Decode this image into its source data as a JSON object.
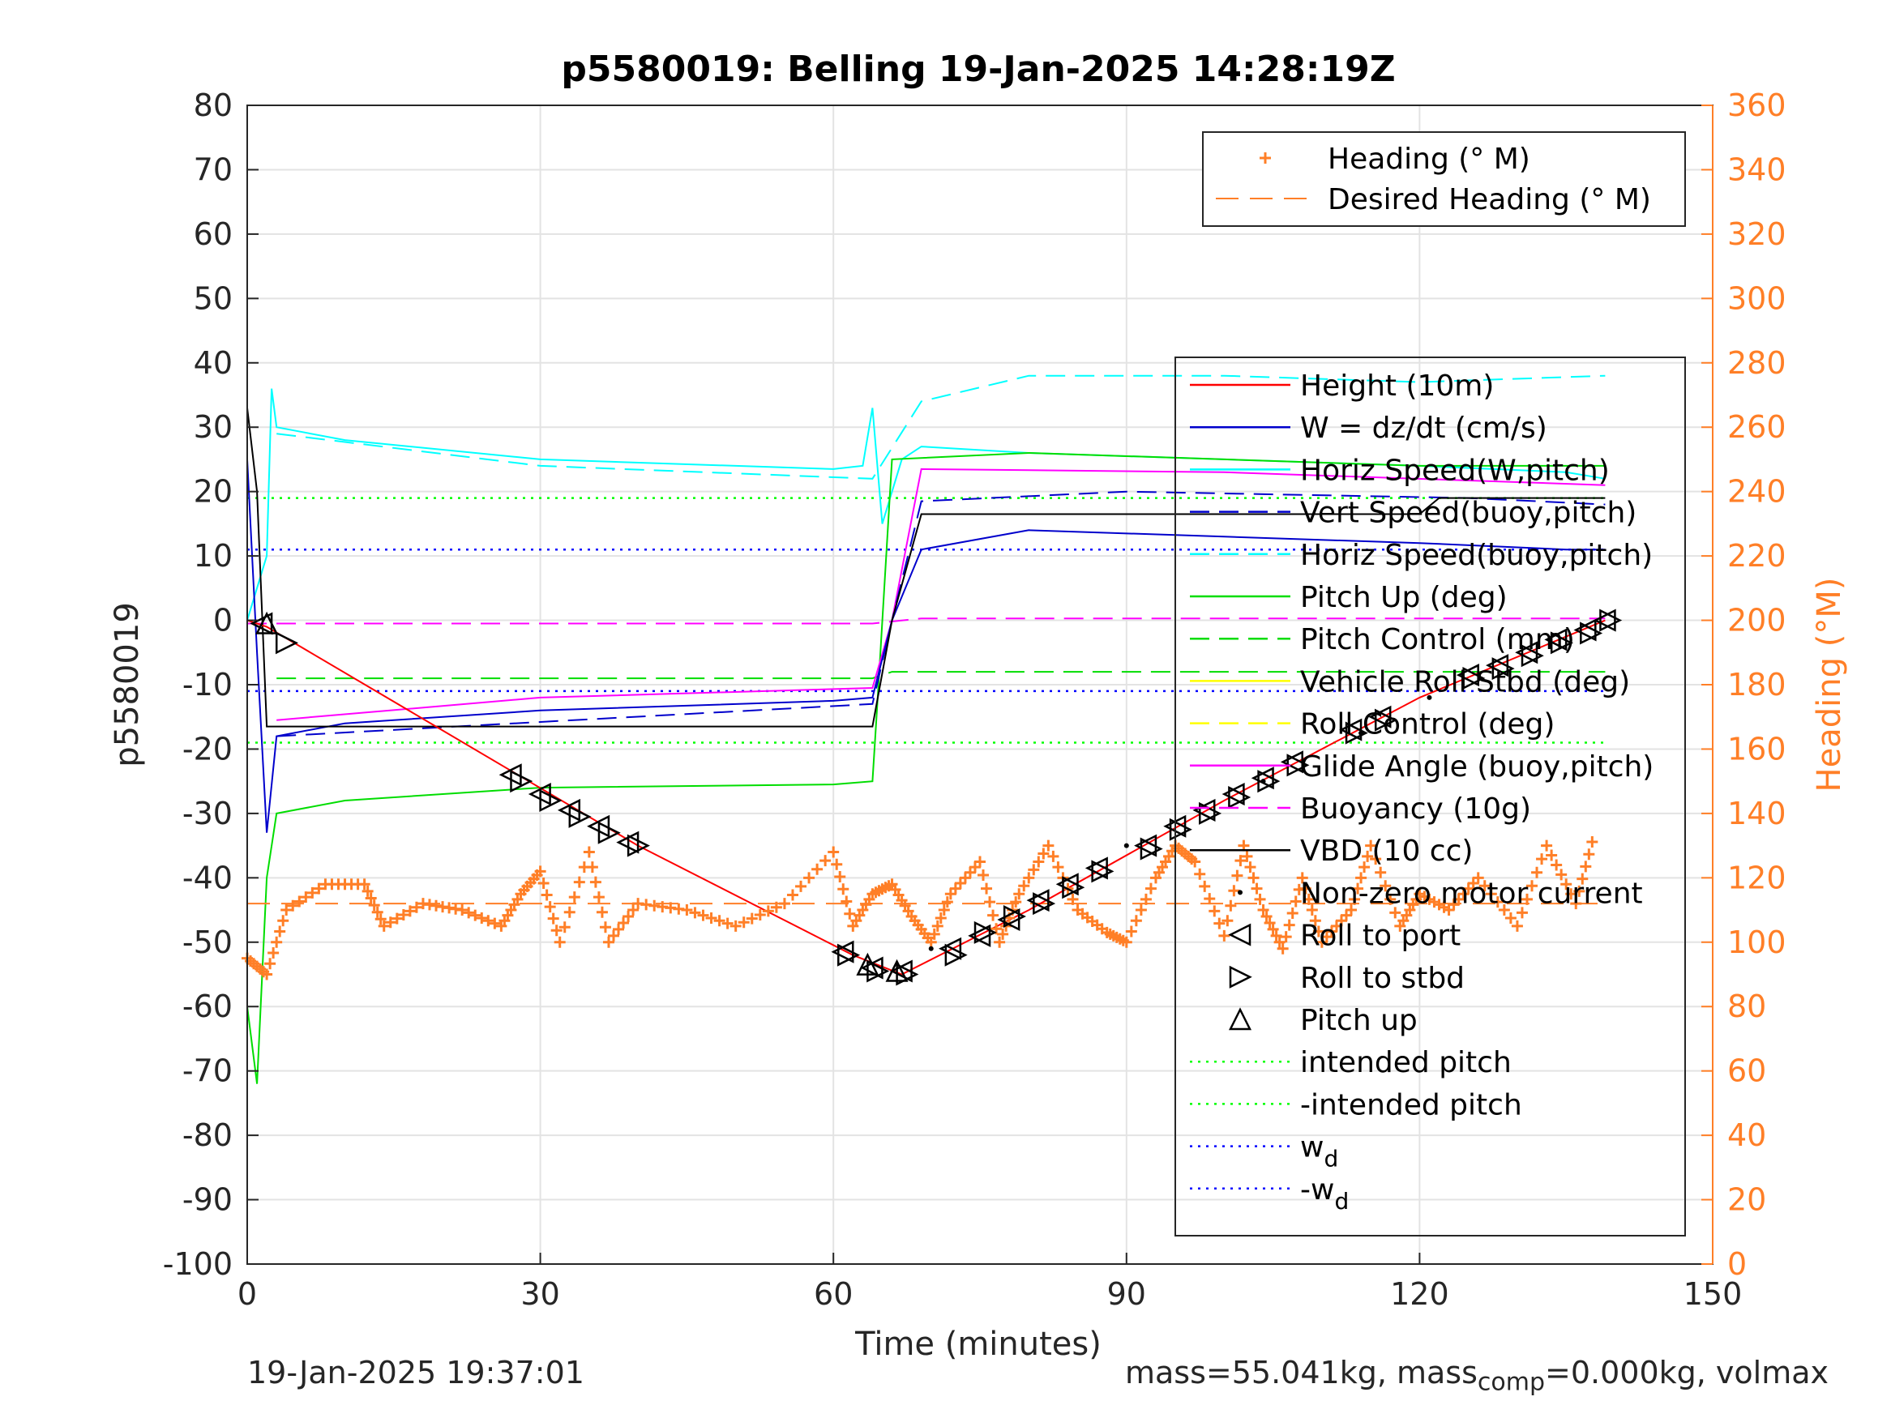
{
  "chart_data": {
    "type": "line",
    "title": "p5580019: Belling 19-Jan-2025 14:28:19Z",
    "xlabel": "Time (minutes)",
    "ylabel_left": "p5580019",
    "ylabel_right": "Heading (°M)",
    "xlim": [
      0,
      150
    ],
    "ylim_left": [
      -100,
      80
    ],
    "ylim_right": [
      0,
      360
    ],
    "xticks": [
      0,
      30,
      60,
      90,
      120,
      150
    ],
    "yticks_left": [
      80,
      70,
      60,
      50,
      40,
      30,
      20,
      10,
      0,
      -10,
      -20,
      -30,
      -40,
      -50,
      -60,
      -70,
      -80,
      -90,
      -100
    ],
    "yticks_right": [
      360,
      340,
      320,
      300,
      280,
      260,
      240,
      220,
      200,
      180,
      160,
      140,
      120,
      100,
      80,
      60,
      40,
      20,
      0
    ],
    "grid": true,
    "colors": {
      "heading": "#ff7f27",
      "height": "#ff0000",
      "w": "#0000cc",
      "horiz_speed": "#00ffff",
      "pitch": "#00dd00",
      "roll": "#ffff00",
      "glide": "#ff00ff",
      "vbd": "#000000"
    },
    "legend_heading": {
      "placement": "top-right",
      "entries": [
        "Heading (° M)",
        "Desired Heading (° M)"
      ]
    },
    "legend_main": {
      "placement": "right",
      "entries": [
        "Height (10m)",
        "W = dz/dt (cm/s)",
        "Horiz Speed(W,pitch)",
        "Vert Speed(buoy,pitch)",
        "Horiz Speed(buoy,pitch)",
        "Pitch Up (deg)",
        "Pitch Control (mm)",
        "Vehicle Roll Stbd (deg)",
        "Roll Control (deg)",
        "Glide Angle (buoy,pitch)",
        "Buoyancy (10g)",
        "VBD (10 cc)",
        "Non-zero motor current",
        "Roll to port",
        "Roll to stbd",
        "Pitch up",
        "intended pitch",
        "-intended pitch",
        "w",
        "-w"
      ],
      "subscript": "d"
    },
    "series": [
      {
        "name": "Height (10m)",
        "x": [
          0,
          2,
          40,
          62,
          67,
          80,
          100,
          120,
          139
        ],
        "y": [
          0,
          -1,
          -35,
          -52,
          -55,
          -45,
          -28,
          -12,
          0
        ]
      },
      {
        "name": "W = dz/dt (cm/s)",
        "x": [
          0,
          1,
          2,
          3,
          10,
          30,
          60,
          64,
          66,
          69,
          80,
          100,
          120,
          135,
          139
        ],
        "y": [
          25,
          -5,
          -33,
          -18,
          -16,
          -14,
          -12.5,
          -12,
          0,
          11,
          14,
          13,
          12,
          11,
          11
        ]
      },
      {
        "name": "Horiz Speed(W,pitch)",
        "x": [
          0,
          2,
          2.5,
          3,
          10,
          30,
          60,
          63,
          64,
          65,
          67,
          69,
          80,
          100,
          120,
          135,
          139
        ],
        "y": [
          0,
          10,
          36,
          30,
          28,
          25,
          23.5,
          24,
          33,
          15,
          25,
          27,
          26,
          25,
          24,
          23,
          22
        ]
      },
      {
        "name": "Vert Speed(buoy,pitch)",
        "x": [
          3,
          64,
          66,
          69,
          90,
          125,
          139
        ],
        "y": [
          -18,
          -13,
          0,
          18.5,
          20,
          19,
          18
        ]
      },
      {
        "name": "Horiz Speed(buoy,pitch)",
        "x": [
          3,
          30,
          64,
          69,
          80,
          100,
          120,
          139
        ],
        "y": [
          29,
          24,
          22,
          34,
          38,
          38,
          37,
          38
        ]
      },
      {
        "name": "Pitch Up (deg)",
        "x": [
          0,
          1,
          2,
          3,
          10,
          30,
          60,
          64,
          64.5,
          66,
          80,
          100,
          120,
          139
        ],
        "y": [
          -60,
          -72,
          -40,
          -30,
          -28,
          -26,
          -25.5,
          -25,
          -13,
          25,
          26,
          25,
          24,
          24
        ]
      },
      {
        "name": "Pitch Control (mm)",
        "x": [
          3,
          64,
          66,
          139
        ],
        "y": [
          -9,
          -9,
          -8,
          -8
        ]
      },
      {
        "name": "Glide Angle (buoy,pitch)",
        "x": [
          3,
          30,
          64,
          66,
          69,
          100,
          139
        ],
        "y": [
          -15.5,
          -12,
          -10.5,
          0,
          23.5,
          23,
          21
        ]
      },
      {
        "name": "Buoyancy (10g)",
        "x": [
          0,
          64,
          69,
          139
        ],
        "y": [
          -0.5,
          -0.5,
          0.3,
          0.3
        ]
      },
      {
        "name": "VBD (10 cc)",
        "x": [
          0,
          1,
          2,
          64,
          66,
          69,
          120,
          122,
          139
        ],
        "y": [
          33,
          20,
          -16.5,
          -16.5,
          0,
          16.5,
          16.5,
          19,
          19
        ]
      },
      {
        "name": "Heading (° M)",
        "axis": "right",
        "x": [
          0,
          2,
          4,
          8,
          12,
          14,
          18,
          22,
          26,
          28,
          30,
          32,
          35,
          37,
          40,
          45,
          50,
          55,
          60,
          62,
          64,
          66,
          68,
          70,
          72,
          75,
          77,
          79,
          82,
          85,
          88,
          90,
          93,
          95,
          97,
          100,
          102,
          104,
          106,
          108,
          110,
          113,
          115,
          118,
          120,
          123,
          126,
          130,
          133,
          136,
          138
        ],
        "y": [
          95,
          90,
          110,
          118,
          118,
          105,
          112,
          110,
          105,
          115,
          122,
          100,
          128,
          100,
          112,
          110,
          105,
          112,
          128,
          105,
          115,
          118,
          108,
          100,
          115,
          125,
          100,
          115,
          130,
          110,
          103,
          100,
          120,
          130,
          125,
          102,
          130,
          110,
          98,
          120,
          100,
          110,
          130,
          105,
          115,
          110,
          120,
          105,
          130,
          112,
          135
        ]
      },
      {
        "name": "Desired Heading (° M)",
        "axis": "right",
        "x": [
          0,
          139
        ],
        "y": [
          112,
          112
        ]
      },
      {
        "name": "intended pitch",
        "x": [
          0,
          139
        ],
        "y": [
          19,
          19
        ]
      },
      {
        "name": "-intended pitch",
        "x": [
          0,
          139
        ],
        "y": [
          -19,
          -19
        ]
      },
      {
        "name": "w",
        "x": [
          0,
          139
        ],
        "y": [
          11,
          11
        ]
      },
      {
        "name": "-w",
        "x": [
          0,
          139
        ],
        "y": [
          -11,
          -11
        ]
      }
    ],
    "markers": {
      "roll_to_port": {
        "x": [
          1.5,
          27,
          30,
          33,
          36,
          39,
          61,
          64,
          67,
          72,
          75,
          78,
          81,
          84,
          87,
          92,
          95,
          98,
          101,
          104,
          107,
          113,
          116,
          125,
          128,
          131,
          134,
          137,
          139
        ],
        "y": [
          -0.5,
          -24,
          -27,
          -29.5,
          -32,
          -34.5,
          -51.5,
          -54,
          -54.5,
          -51,
          -49,
          -46.5,
          -43.5,
          -41,
          -38.5,
          -35,
          -32,
          -29.5,
          -27,
          -24.5,
          -22,
          -17,
          -15,
          -8.5,
          -7,
          -5,
          -3,
          -1.5,
          0
        ]
      },
      "roll_to_stbd": {
        "x": [
          4,
          28,
          31,
          34,
          37,
          40,
          61.5,
          64.5,
          67.5,
          72.5,
          75.5,
          78.5,
          81.5,
          84.5,
          87.5,
          92.5,
          95.5,
          98.5,
          101.5,
          104.5,
          107.5,
          113.5,
          116.5,
          125.5,
          128.5,
          131.5,
          134.5,
          137.5,
          139.5
        ],
        "y": [
          -3.5,
          -25,
          -28,
          -30.5,
          -33,
          -35,
          -52,
          -54.5,
          -55,
          -52,
          -48.5,
          -46,
          -44,
          -41.5,
          -39,
          -35.5,
          -32.5,
          -30,
          -27.5,
          -25,
          -22.5,
          -17.5,
          -15.5,
          -9,
          -7.5,
          -5.5,
          -3.5,
          -2,
          0
        ]
      },
      "pitch_up": {
        "x": [
          2,
          63.5,
          66.5
        ],
        "y": [
          -0.5,
          -53.5,
          -54.5
        ]
      },
      "motor_current": {
        "x": [
          121,
          114,
          104,
          90,
          70
        ],
        "y": [
          -12,
          -17.5,
          -25,
          -35,
          -51
        ]
      }
    }
  },
  "footer": {
    "datetime": "19-Jan-2025 19:37:01",
    "mass_text": "mass=55.041kg, mass",
    "mass_sub": "comp",
    "mass_rest": "=0.000kg, volmax"
  }
}
